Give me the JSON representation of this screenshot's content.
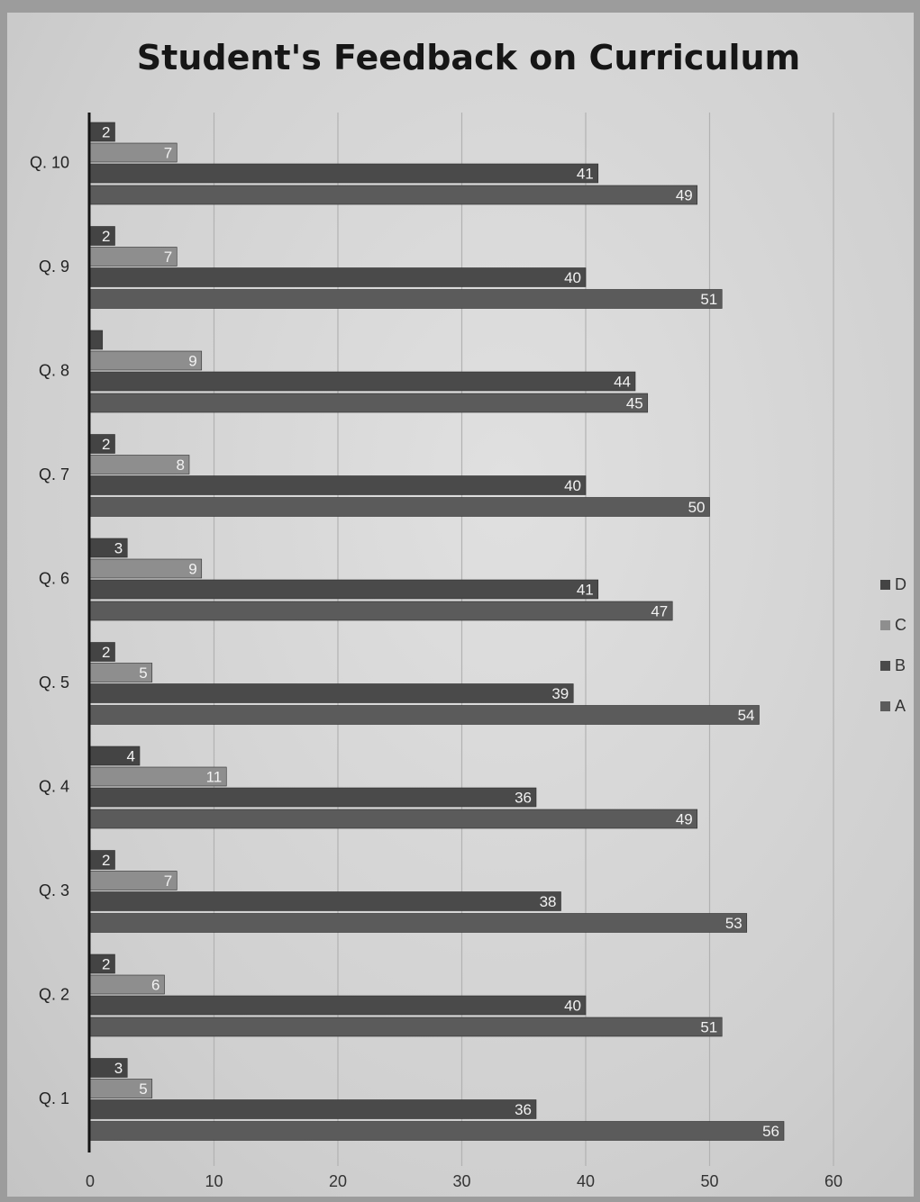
{
  "chart_data": {
    "type": "bar",
    "orientation": "horizontal",
    "title": "Student's Feedback on Curriculum",
    "xlabel": "",
    "ylabel": "",
    "categories": [
      "Q. 1",
      "Q. 2",
      "Q. 3",
      "Q. 4",
      "Q. 5",
      "Q. 6",
      "Q. 7",
      "Q. 8",
      "Q. 9",
      "Q. 10"
    ],
    "x_ticks": [
      "0",
      "10",
      "20",
      "30",
      "40",
      "50",
      "60"
    ],
    "xlim": [
      0,
      60
    ],
    "grid": true,
    "legend_position": "right",
    "series": [
      {
        "name": "A",
        "values": [
          56,
          51,
          53,
          49,
          54,
          47,
          50,
          45,
          51,
          49
        ],
        "labels": [
          "56",
          "51",
          "53",
          "49",
          "54",
          "47",
          "50",
          "45",
          "51",
          "49"
        ],
        "color": "#5b5b5b"
      },
      {
        "name": "B",
        "values": [
          36,
          40,
          38,
          36,
          39,
          41,
          40,
          44,
          40,
          41
        ],
        "labels": [
          "36",
          "40",
          "38",
          "36",
          "39",
          "41",
          "40",
          "44",
          "40",
          "41"
        ],
        "color": "#4a4a4a"
      },
      {
        "name": "C",
        "values": [
          5,
          6,
          7,
          11,
          5,
          9,
          8,
          9,
          7,
          7
        ],
        "labels": [
          "5",
          "6",
          "7",
          "11",
          "5",
          "9",
          "8",
          "9",
          "7",
          "7"
        ],
        "color": "#8e8e8e"
      },
      {
        "name": "D",
        "values": [
          3,
          2,
          2,
          4,
          2,
          3,
          2,
          1,
          2,
          2
        ],
        "labels": [
          "3",
          "2",
          "2",
          "4",
          "2",
          "3",
          "2",
          "",
          "2",
          "2"
        ],
        "color": "#444444"
      }
    ]
  }
}
